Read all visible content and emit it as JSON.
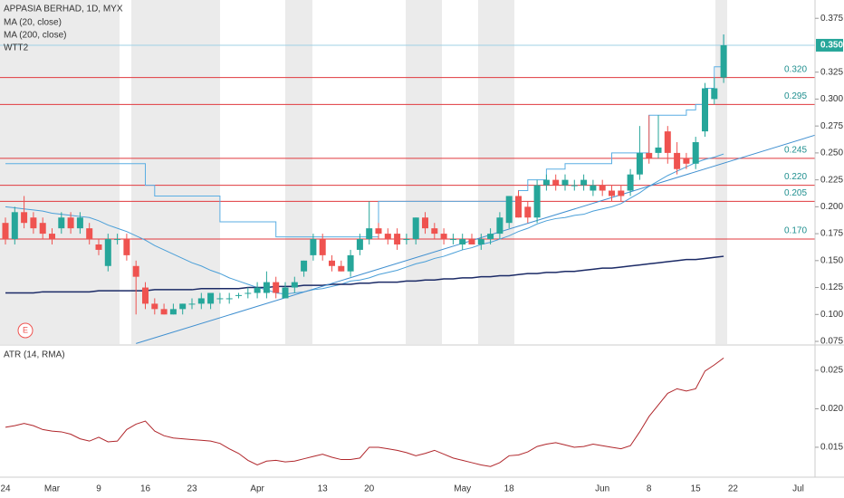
{
  "chart_data": [
    {
      "type": "candlestick",
      "title": "APPASIA BERHAD, 1D, MYX",
      "badge": "E",
      "up_color": "#26a69a",
      "down_color": "#ef5350",
      "open": [
        0.185,
        0.17,
        0.195,
        0.19,
        0.185,
        0.175,
        0.18,
        0.19,
        0.18,
        0.18,
        0.165,
        0.145,
        0.17,
        0.17,
        0.145,
        0.125,
        0.11,
        0.105,
        0.1,
        0.105,
        0.11,
        0.11,
        0.11,
        0.115,
        0.115,
        0.118,
        0.12,
        0.12,
        0.12,
        0.13,
        0.115,
        0.125,
        0.14,
        0.155,
        0.17,
        0.15,
        0.145,
        0.14,
        0.16,
        0.17,
        0.18,
        0.175,
        0.175,
        0.17,
        0.17,
        0.19,
        0.18,
        0.175,
        0.17,
        0.165,
        0.17,
        0.165,
        0.17,
        0.175,
        0.185,
        0.21,
        0.2,
        0.19,
        0.22,
        0.225,
        0.22,
        0.22,
        0.22,
        0.215,
        0.22,
        0.215,
        0.215,
        0.215,
        0.23,
        0.25,
        0.25,
        0.27,
        0.25,
        0.245,
        0.24,
        0.27,
        0.3,
        0.32
      ],
      "high": [
        0.19,
        0.2,
        0.21,
        0.195,
        0.19,
        0.18,
        0.195,
        0.195,
        0.195,
        0.185,
        0.17,
        0.175,
        0.175,
        0.175,
        0.15,
        0.13,
        0.115,
        0.11,
        0.11,
        0.11,
        0.115,
        0.12,
        0.12,
        0.12,
        0.12,
        0.12,
        0.125,
        0.13,
        0.14,
        0.135,
        0.13,
        0.135,
        0.15,
        0.175,
        0.175,
        0.155,
        0.15,
        0.16,
        0.175,
        0.205,
        0.185,
        0.18,
        0.18,
        0.175,
        0.19,
        0.195,
        0.185,
        0.18,
        0.175,
        0.175,
        0.175,
        0.175,
        0.18,
        0.195,
        0.21,
        0.215,
        0.205,
        0.225,
        0.23,
        0.23,
        0.23,
        0.225,
        0.23,
        0.225,
        0.225,
        0.22,
        0.22,
        0.235,
        0.275,
        0.285,
        0.285,
        0.275,
        0.26,
        0.25,
        0.265,
        0.315,
        0.32,
        0.36
      ],
      "low": [
        0.165,
        0.165,
        0.18,
        0.175,
        0.17,
        0.165,
        0.175,
        0.175,
        0.175,
        0.165,
        0.155,
        0.14,
        0.165,
        0.15,
        0.1,
        0.105,
        0.1,
        0.1,
        0.1,
        0.1,
        0.105,
        0.105,
        0.105,
        0.11,
        0.11,
        0.115,
        0.115,
        0.115,
        0.115,
        0.115,
        0.115,
        0.12,
        0.135,
        0.15,
        0.15,
        0.14,
        0.14,
        0.135,
        0.155,
        0.165,
        0.17,
        0.165,
        0.16,
        0.165,
        0.165,
        0.175,
        0.17,
        0.165,
        0.165,
        0.16,
        0.165,
        0.16,
        0.165,
        0.17,
        0.18,
        0.19,
        0.185,
        0.185,
        0.215,
        0.215,
        0.215,
        0.215,
        0.215,
        0.21,
        0.21,
        0.205,
        0.205,
        0.21,
        0.225,
        0.24,
        0.245,
        0.24,
        0.23,
        0.235,
        0.235,
        0.265,
        0.295,
        0.315
      ],
      "close": [
        0.17,
        0.195,
        0.185,
        0.18,
        0.175,
        0.17,
        0.19,
        0.18,
        0.19,
        0.17,
        0.16,
        0.17,
        0.17,
        0.155,
        0.135,
        0.11,
        0.105,
        0.1,
        0.105,
        0.11,
        0.11,
        0.115,
        0.12,
        0.115,
        0.115,
        0.118,
        0.12,
        0.125,
        0.13,
        0.12,
        0.125,
        0.13,
        0.15,
        0.17,
        0.155,
        0.145,
        0.14,
        0.155,
        0.17,
        0.18,
        0.175,
        0.17,
        0.165,
        0.17,
        0.19,
        0.18,
        0.175,
        0.17,
        0.17,
        0.17,
        0.165,
        0.17,
        0.175,
        0.19,
        0.21,
        0.19,
        0.19,
        0.22,
        0.225,
        0.22,
        0.225,
        0.22,
        0.225,
        0.22,
        0.215,
        0.21,
        0.21,
        0.23,
        0.25,
        0.245,
        0.255,
        0.25,
        0.235,
        0.24,
        0.26,
        0.31,
        0.31,
        0.35
      ],
      "series": [
        {
          "name": "MA (20, close)",
          "color": "#4a9fd8",
          "values": [
            0.2,
            0.199,
            0.198,
            0.197,
            0.196,
            0.194,
            0.193,
            0.192,
            0.191,
            0.19,
            0.187,
            0.183,
            0.18,
            0.177,
            0.173,
            0.169,
            0.164,
            0.16,
            0.156,
            0.152,
            0.148,
            0.145,
            0.141,
            0.138,
            0.134,
            0.131,
            0.128,
            0.125,
            0.123,
            0.12,
            0.119,
            0.12,
            0.121,
            0.123,
            0.124,
            0.126,
            0.128,
            0.131,
            0.132,
            0.134,
            0.137,
            0.139,
            0.141,
            0.144,
            0.147,
            0.149,
            0.152,
            0.154,
            0.157,
            0.16,
            0.162,
            0.165,
            0.167,
            0.17,
            0.173,
            0.177,
            0.18,
            0.184,
            0.187,
            0.189,
            0.19,
            0.192,
            0.193,
            0.196,
            0.198,
            0.2,
            0.203,
            0.208,
            0.213,
            0.219,
            0.224,
            0.229,
            0.233,
            0.237,
            0.241,
            0.244,
            0.246,
            0.249
          ]
        },
        {
          "name": "MA (200, close)",
          "color": "#1b2a66",
          "values": [
            0.12,
            0.12,
            0.12,
            0.12,
            0.121,
            0.121,
            0.121,
            0.121,
            0.121,
            0.121,
            0.122,
            0.122,
            0.122,
            0.122,
            0.122,
            0.122,
            0.123,
            0.123,
            0.123,
            0.123,
            0.123,
            0.124,
            0.124,
            0.124,
            0.124,
            0.124,
            0.125,
            0.125,
            0.125,
            0.126,
            0.126,
            0.126,
            0.127,
            0.127,
            0.127,
            0.128,
            0.128,
            0.128,
            0.129,
            0.129,
            0.13,
            0.13,
            0.13,
            0.131,
            0.131,
            0.132,
            0.132,
            0.133,
            0.133,
            0.134,
            0.134,
            0.135,
            0.135,
            0.136,
            0.136,
            0.137,
            0.138,
            0.138,
            0.139,
            0.139,
            0.14,
            0.14,
            0.141,
            0.142,
            0.143,
            0.143,
            0.144,
            0.145,
            0.146,
            0.147,
            0.148,
            0.149,
            0.15,
            0.151,
            0.151,
            0.152,
            0.153,
            0.154
          ]
        },
        {
          "name": "WTT2",
          "color": "#5aaee3",
          "style": "step",
          "values": [
            0.24,
            0.24,
            0.24,
            0.24,
            0.24,
            0.24,
            0.24,
            0.24,
            0.24,
            0.24,
            0.24,
            0.24,
            0.24,
            0.24,
            0.24,
            0.22,
            0.21,
            0.21,
            0.21,
            0.21,
            0.21,
            0.21,
            0.21,
            0.186,
            0.186,
            0.186,
            0.186,
            0.186,
            0.186,
            0.172,
            0.172,
            0.172,
            0.172,
            0.172,
            0.172,
            0.172,
            0.172,
            0.172,
            0.172,
            0.172,
            0.205,
            0.205,
            0.205,
            0.205,
            0.205,
            0.205,
            0.205,
            0.205,
            0.205,
            0.205,
            0.205,
            0.205,
            0.205,
            0.205,
            0.205,
            0.215,
            0.225,
            0.225,
            0.235,
            0.235,
            0.24,
            0.24,
            0.24,
            0.24,
            0.24,
            0.25,
            0.25,
            0.25,
            0.25,
            0.285,
            0.285,
            0.285,
            0.285,
            0.29,
            0.295,
            0.31,
            0.33,
            0.36
          ]
        }
      ],
      "trend_line": {
        "color": "#3f8fd0",
        "x": [
          14,
          90
        ],
        "values": [
          0.073,
          0.275
        ]
      },
      "level_color": "#e0393e",
      "level_label_color": "#1f8f8f",
      "levels": [
        {
          "value": 0.32,
          "label": "0.320"
        },
        {
          "value": 0.295,
          "label": "0.295"
        },
        {
          "value": 0.245,
          "label": "0.245"
        },
        {
          "value": 0.22,
          "label": "0.220"
        },
        {
          "value": 0.205,
          "label": "0.205"
        },
        {
          "value": 0.17,
          "label": "0.170"
        }
      ],
      "last_price_label": "0.350",
      "last_price_color": "#26a69a",
      "ylim": [
        0.0725,
        0.392
      ],
      "yticks": [
        0.075,
        {
          "value": 0.1,
          "label": "0.100"
        },
        0.125,
        {
          "value": 0.15,
          "label": "0.150"
        },
        0.175,
        {
          "value": 0.2,
          "label": "0.200"
        },
        0.225,
        {
          "value": 0.25,
          "label": "0.250"
        },
        0.275,
        {
          "value": 0.3,
          "label": "0.300"
        },
        0.325,
        0.375
      ]
    },
    {
      "type": "line",
      "categories": [
        "24",
        null,
        null,
        null,
        null,
        "Mar",
        null,
        null,
        null,
        null,
        "9",
        null,
        null,
        null,
        null,
        "16",
        null,
        null,
        null,
        null,
        "23",
        null,
        null,
        null,
        null,
        null,
        null,
        "Apr",
        null,
        null,
        null,
        null,
        null,
        null,
        "13",
        null,
        null,
        null,
        null,
        "20",
        null,
        null,
        null,
        null,
        null,
        null,
        null,
        null,
        null,
        "May",
        null,
        null,
        null,
        null,
        "18",
        null,
        null,
        null,
        null,
        null,
        null,
        null,
        null,
        null,
        "Jun",
        null,
        null,
        null,
        null,
        "8",
        null,
        null,
        null,
        null,
        "15",
        null,
        null,
        null,
        "22",
        null,
        null,
        null,
        null,
        null,
        null,
        "Jul"
      ],
      "series": [
        {
          "name": "ATR (14, RMA)",
          "color": "#b0262b",
          "values": [
            0.0176,
            0.0178,
            0.0181,
            0.0178,
            0.0173,
            0.0171,
            0.017,
            0.0167,
            0.0161,
            0.0158,
            0.0163,
            0.0157,
            0.0158,
            0.0173,
            0.018,
            0.0184,
            0.0171,
            0.0165,
            0.0162,
            0.0161,
            0.016,
            0.0159,
            0.0158,
            0.0155,
            0.0148,
            0.0142,
            0.0133,
            0.0127,
            0.0132,
            0.0133,
            0.0131,
            0.0132,
            0.0135,
            0.0138,
            0.0141,
            0.0137,
            0.0134,
            0.0134,
            0.0136,
            0.015,
            0.015,
            0.0148,
            0.0146,
            0.0143,
            0.0139,
            0.0142,
            0.0146,
            0.0141,
            0.0136,
            0.0133,
            0.013,
            0.0127,
            0.0125,
            0.013,
            0.0139,
            0.014,
            0.0144,
            0.0151,
            0.0154,
            0.0156,
            0.0153,
            0.015,
            0.0151,
            0.0154,
            0.0152,
            0.015,
            0.0148,
            0.0152,
            0.017,
            0.019,
            0.0205,
            0.022,
            0.0226,
            0.0223,
            0.0226,
            0.0249,
            0.0257,
            0.0266,
            null,
            null,
            null,
            null,
            null,
            null,
            null,
            null
          ]
        }
      ],
      "ylim": [
        0.0117,
        0.0277
      ],
      "yticks": [
        0.015,
        {
          "value": 0.02,
          "label": "0.020"
        },
        0.025
      ]
    }
  ]
}
